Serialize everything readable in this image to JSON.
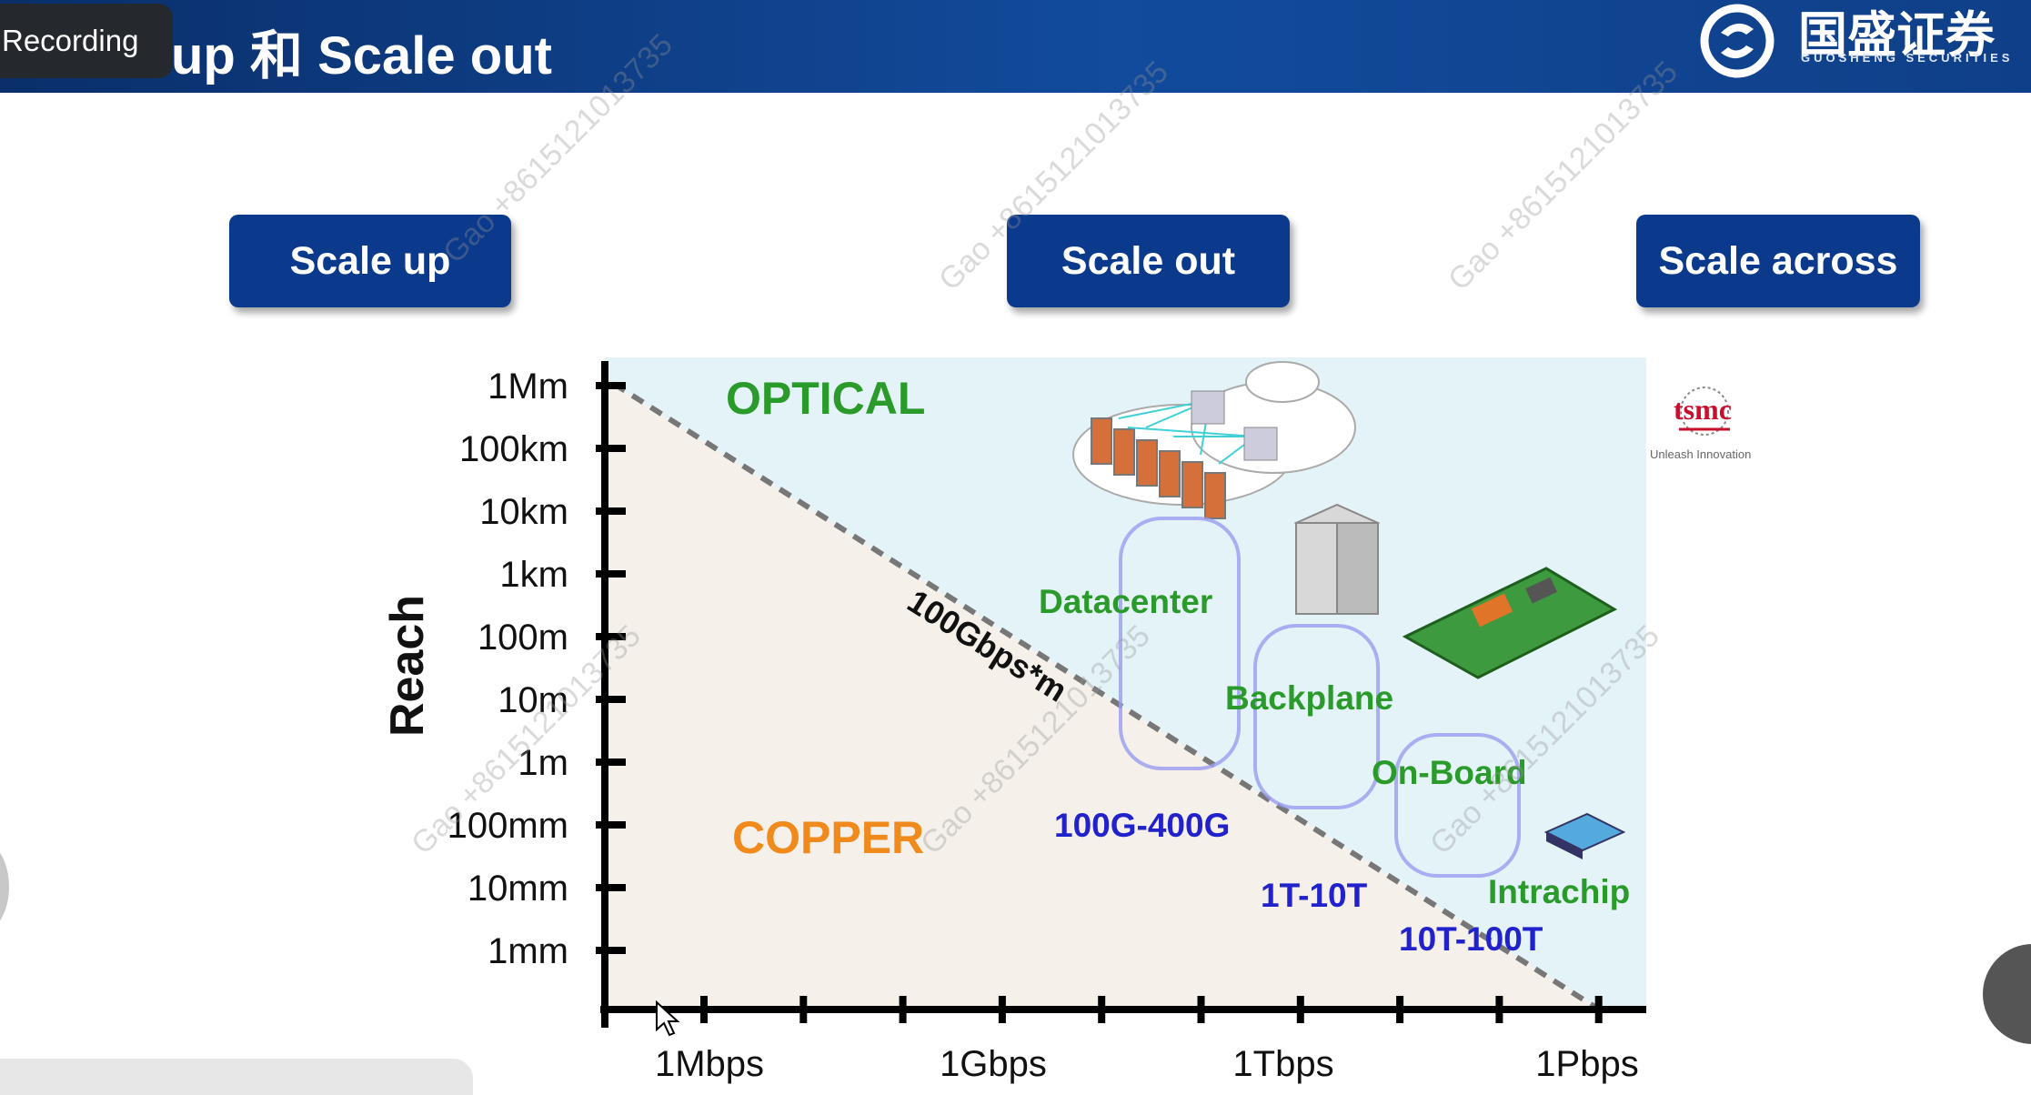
{
  "header": {
    "title_visible": "up 和 Scale out",
    "recording_label": "Recording",
    "logo_cn": "国盛证券",
    "logo_en": "GUOSHENG SECURITIES"
  },
  "buttons": {
    "scale_up": "Scale up",
    "scale_out": "Scale out",
    "scale_across": "Scale across"
  },
  "watermark_text": "Gao +8615121013735",
  "tsmc": {
    "logo_text": "tsmc",
    "tagline": "Unleash Innovation"
  },
  "chart_data": {
    "type": "scatter",
    "ylabel": "Reach",
    "xlabel": "",
    "y_ticks": [
      "1Mm",
      "100km",
      "10km",
      "1km",
      "100m",
      "10m",
      "1m",
      "100mm",
      "10mm",
      "1mm"
    ],
    "x_ticks": [
      "1Mbps",
      "1Gbps",
      "1Tbps",
      "1Pbps"
    ],
    "regions": [
      "OPTICAL",
      "COPPER"
    ],
    "boundary_label": "100Gbps*m",
    "annotations": [
      "Datacenter",
      "Backplane",
      "On-Board",
      "Intrachip"
    ],
    "bandwidth_labels": [
      "100G-400G",
      "1T-10T",
      "10T-100T"
    ],
    "colors": {
      "optical_region": "#e4f3f8",
      "copper_region": "#f5f0ea",
      "green_text": "#2a9a2a",
      "blue_text": "#2222cc",
      "header_blue": "#124b9c",
      "button_blue": "#0b3a8c"
    }
  }
}
